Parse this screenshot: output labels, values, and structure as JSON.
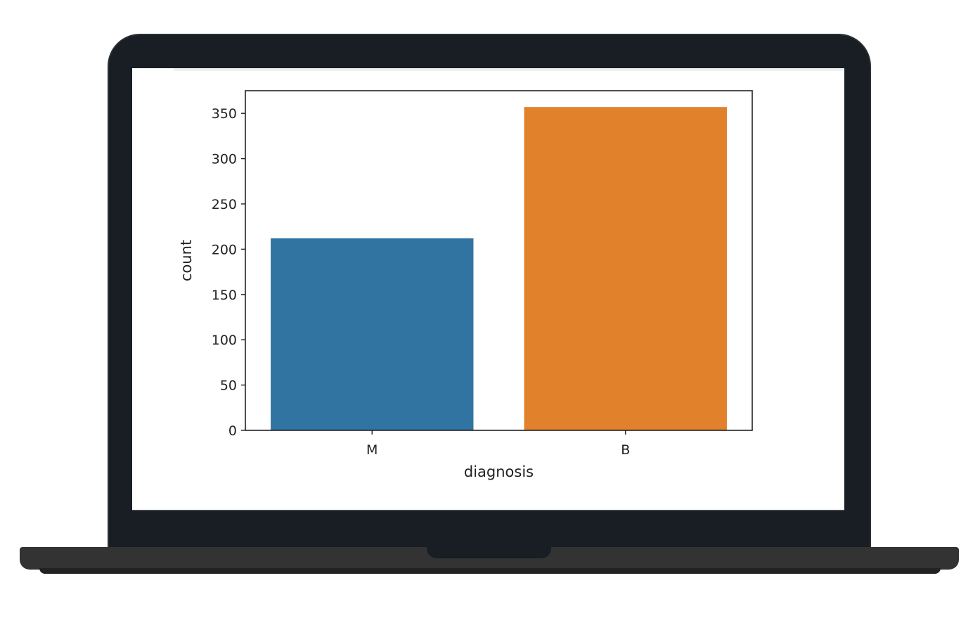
{
  "chart_data": {
    "type": "bar",
    "categories": [
      "M",
      "B"
    ],
    "values": [
      212,
      357
    ],
    "colors": [
      "#3274a1",
      "#e1812c"
    ],
    "xlabel": "diagnosis",
    "ylabel": "count",
    "ylim": [
      0,
      375
    ],
    "yticks": [
      0,
      50,
      100,
      150,
      200,
      250,
      300,
      350
    ],
    "grid": false
  }
}
